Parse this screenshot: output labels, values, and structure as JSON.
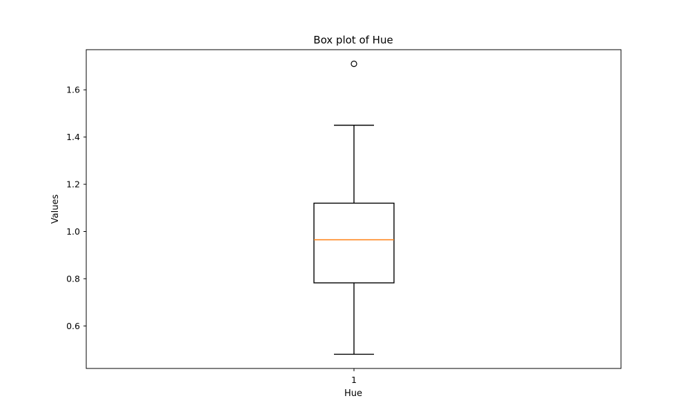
{
  "chart_data": {
    "type": "box",
    "title": "Box plot of Hue",
    "xlabel": "Hue",
    "ylabel": "Values",
    "categories": [
      "1"
    ],
    "ylim": [
      0.42,
      1.77
    ],
    "yticks": [
      0.6,
      0.8,
      1.0,
      1.2,
      1.4,
      1.6
    ],
    "ytick_labels": [
      "0.6",
      "0.8",
      "1.0",
      "1.2",
      "1.4",
      "1.6"
    ],
    "boxes": [
      {
        "category": "1",
        "whisker_low": 0.48,
        "q1": 0.7825,
        "median": 0.965,
        "q3": 1.12,
        "whisker_high": 1.45,
        "fliers": [
          1.71
        ]
      }
    ],
    "colors": {
      "median": "#ff7f0e",
      "box": "#000000"
    },
    "grid": false
  }
}
